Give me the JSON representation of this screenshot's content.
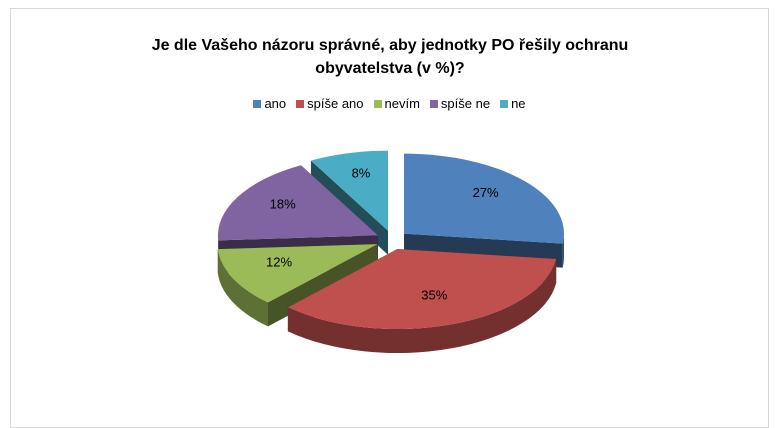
{
  "chart_data": {
    "type": "pie",
    "title": "Je dle Vašeho názoru správné, aby jednotky PO řešily ochranu obyvatelstva (v %)?",
    "categories": [
      "ano",
      "spíše ano",
      "nevím",
      "spíše ne",
      "ne"
    ],
    "values": [
      27,
      35,
      12,
      18,
      8
    ],
    "value_labels": [
      "27%",
      "35%",
      "12%",
      "18%",
      "8%"
    ],
    "colors": [
      "#4f81bd",
      "#c0504d",
      "#9bbb59",
      "#8064a2",
      "#4bacc6"
    ],
    "legend": "top"
  }
}
